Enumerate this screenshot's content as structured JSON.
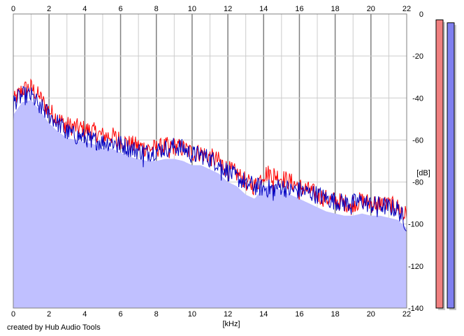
{
  "footer": {
    "credit": "created by Hub Audio Tools"
  },
  "colors": {
    "fill": "#c0c0ff",
    "left_line": "#ff0000",
    "right_line": "#0000c0",
    "grid_minor": "#cccccc",
    "grid_major": "#808080",
    "meter_left": "#f08080",
    "meter_right": "#8080f0"
  },
  "chart_data": {
    "type": "line",
    "title": "",
    "xlabel": "[kHz]",
    "ylabel": "[dB]",
    "xlim": [
      0,
      22
    ],
    "ylim": [
      -140,
      0
    ],
    "x_ticks": [
      "0",
      "2",
      "4",
      "6",
      "8",
      "10",
      "12",
      "14",
      "16",
      "18",
      "20",
      "22"
    ],
    "y_ticks": [
      "0",
      "-20",
      "-40",
      "-60",
      "-80",
      "-100",
      "-120",
      "-140"
    ],
    "grid": true,
    "x": [
      0,
      0.5,
      1,
      1.5,
      2,
      2.5,
      3,
      3.5,
      4,
      4.5,
      5,
      5.5,
      6,
      6.5,
      7,
      7.5,
      8,
      8.5,
      9,
      9.5,
      10,
      10.5,
      11,
      11.5,
      12,
      12.5,
      13,
      13.5,
      14,
      14.5,
      15,
      15.5,
      16,
      16.5,
      17,
      17.5,
      18,
      18.5,
      19,
      19.5,
      20,
      20.5,
      21,
      21.5,
      22
    ],
    "series": [
      {
        "values": [
          -42,
          -36,
          -35,
          -40,
          -46,
          -50,
          -53,
          -54,
          -55,
          -56,
          -58,
          -58,
          -60,
          -62,
          -63,
          -64,
          -64,
          -63,
          -63,
          -64,
          -66,
          -66,
          -68,
          -70,
          -74,
          -76,
          -80,
          -82,
          -76,
          -76,
          -78,
          -80,
          -82,
          -84,
          -86,
          -88,
          -89,
          -90,
          -90,
          -89,
          -90,
          -90,
          -91,
          -92,
          -96
        ]
      },
      {
        "values": [
          -42,
          -39,
          -39,
          -44,
          -48,
          -52,
          -56,
          -58,
          -59,
          -60,
          -61,
          -61,
          -62,
          -64,
          -65,
          -66,
          -65,
          -64,
          -63,
          -64,
          -67,
          -67,
          -69,
          -71,
          -75,
          -78,
          -80,
          -82,
          -83,
          -83,
          -82,
          -84,
          -84,
          -85,
          -86,
          -88,
          -89,
          -90,
          -90,
          -89,
          -91,
          -91,
          -92,
          -93,
          -100
        ]
      }
    ],
    "meters": {
      "levels": [
        0.98,
        0.97
      ]
    }
  }
}
